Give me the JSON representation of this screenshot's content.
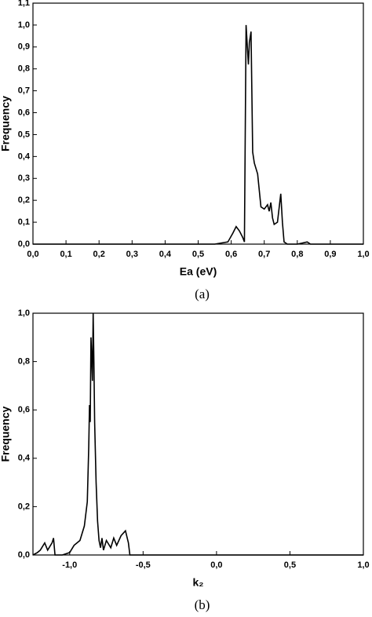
{
  "chart_data": [
    {
      "type": "line",
      "x_label": "Ea (eV)",
      "y_label": "Frequency",
      "caption": "(a)",
      "color": "#000000",
      "x": [
        0,
        0.55,
        0.59,
        0.605,
        0.615,
        0.625,
        0.635,
        0.64,
        0.645,
        0.652,
        0.655,
        0.66,
        0.665,
        0.67,
        0.68,
        0.69,
        0.7,
        0.71,
        0.715,
        0.72,
        0.725,
        0.73,
        0.74,
        0.75,
        0.755,
        0.76,
        0.77,
        0.8,
        0.83,
        0.84,
        0.85,
        0.9,
        1.0
      ],
      "values": [
        0,
        0,
        0.01,
        0.05,
        0.08,
        0.06,
        0.03,
        0.01,
        1.0,
        0.82,
        0.92,
        0.97,
        0.42,
        0.37,
        0.32,
        0.17,
        0.16,
        0.18,
        0.15,
        0.19,
        0.12,
        0.09,
        0.1,
        0.23,
        0.1,
        0.01,
        0,
        0,
        0.01,
        0,
        0,
        0,
        0
      ],
      "xlim": [
        0,
        1.0
      ],
      "xticks": [
        {
          "value": 0,
          "label": "0,0"
        },
        {
          "value": 0.1,
          "label": "0,1"
        },
        {
          "value": 0.2,
          "label": "0,2"
        },
        {
          "value": 0.3,
          "label": "0,3"
        },
        {
          "value": 0.4,
          "label": "0,4"
        },
        {
          "value": 0.5,
          "label": "0,5"
        },
        {
          "value": 0.6,
          "label": "0,6"
        },
        {
          "value": 0.7,
          "label": "0,7"
        },
        {
          "value": 0.8,
          "label": "0,8"
        },
        {
          "value": 0.9,
          "label": "0,9"
        },
        {
          "value": 1.0,
          "label": "1,0"
        }
      ],
      "ylim": [
        0,
        1.1
      ],
      "yticks": [
        {
          "value": 0,
          "label": "0,0"
        },
        {
          "value": 0.1,
          "label": "0,1"
        },
        {
          "value": 0.2,
          "label": "0,2"
        },
        {
          "value": 0.3,
          "label": "0,3"
        },
        {
          "value": 0.4,
          "label": "0,4"
        },
        {
          "value": 0.5,
          "label": "0,5"
        },
        {
          "value": 0.6,
          "label": "0,6"
        },
        {
          "value": 0.7,
          "label": "0,7"
        },
        {
          "value": 0.8,
          "label": "0,8"
        },
        {
          "value": 0.9,
          "label": "0,9"
        },
        {
          "value": 1.0,
          "label": "1,0"
        },
        {
          "value": 1.1,
          "label": "1,1"
        }
      ]
    },
    {
      "type": "line",
      "x_label": "k₂",
      "y_label": "Frequency",
      "caption": "(b)",
      "color": "#000000",
      "x": [
        -1.25,
        -1.22,
        -1.2,
        -1.17,
        -1.15,
        -1.12,
        -1.11,
        -1.1,
        -1.05,
        -1.0,
        -0.97,
        -0.93,
        -0.9,
        -0.88,
        -0.87,
        -0.865,
        -0.86,
        -0.855,
        -0.85,
        -0.845,
        -0.84,
        -0.835,
        -0.83,
        -0.82,
        -0.81,
        -0.8,
        -0.79,
        -0.78,
        -0.77,
        -0.75,
        -0.72,
        -0.7,
        -0.68,
        -0.65,
        -0.62,
        -0.6,
        -0.59,
        -0.5,
        1.0
      ],
      "values": [
        0,
        0.01,
        0.02,
        0.05,
        0.02,
        0.05,
        0.07,
        0,
        0,
        0.01,
        0.04,
        0.06,
        0.12,
        0.22,
        0.45,
        0.62,
        0.55,
        0.9,
        0.82,
        0.72,
        1.0,
        0.8,
        0.55,
        0.3,
        0.14,
        0.06,
        0.03,
        0.07,
        0.02,
        0.06,
        0.03,
        0.07,
        0.04,
        0.08,
        0.1,
        0.05,
        0,
        0,
        0
      ],
      "xlim": [
        -1.25,
        1.0
      ],
      "xticks": [
        {
          "value": -1.0,
          "label": "-1,0"
        },
        {
          "value": -0.5,
          "label": "-0,5"
        },
        {
          "value": 0,
          "label": "0,0"
        },
        {
          "value": 0.5,
          "label": "0,5"
        },
        {
          "value": 1.0,
          "label": "1,0"
        }
      ],
      "ylim": [
        0,
        1.0
      ],
      "yticks": [
        {
          "value": 0,
          "label": "0,0"
        },
        {
          "value": 0.2,
          "label": "0,2"
        },
        {
          "value": 0.4,
          "label": "0,4"
        },
        {
          "value": 0.6,
          "label": "0,6"
        },
        {
          "value": 0.8,
          "label": "0,8"
        },
        {
          "value": 1.0,
          "label": "1,0"
        }
      ]
    }
  ]
}
